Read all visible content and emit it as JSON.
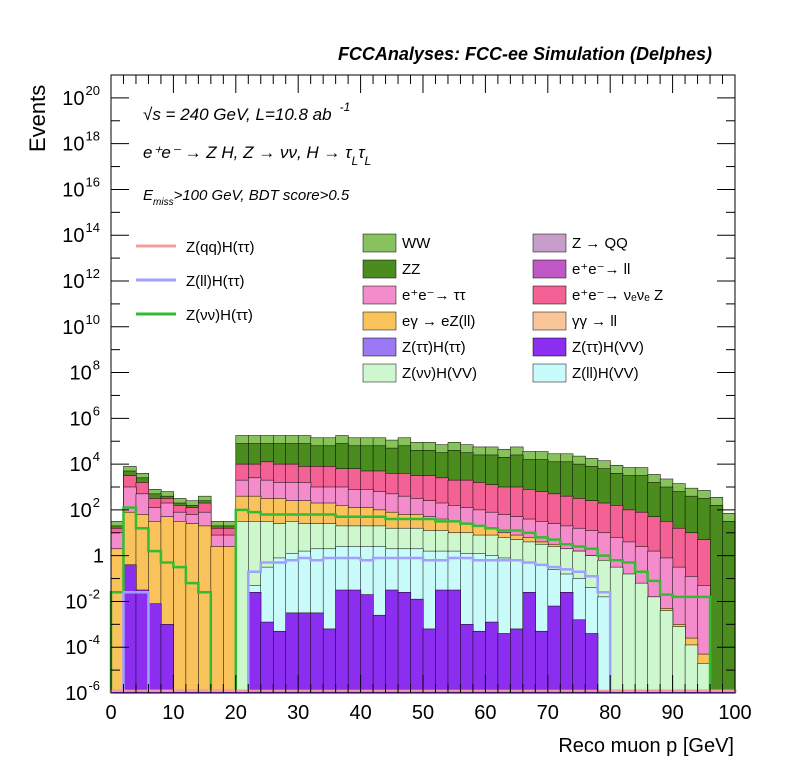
{
  "header": {
    "title": "FCCAnalyses: FCC-ee Simulation (Delphes)"
  },
  "annotations": {
    "energy_pre": "√s = 240 GeV, L=10.8 ab",
    "energy_sup": "-1",
    "process": "e⁺e⁻ → Z H, Z → νν, H → τ",
    "tau_sub": "L",
    "selection_pre": "E",
    "selection_sub": "miss",
    "selection_post": ">100 GeV, BDT score>0.5"
  },
  "colors": {
    "WW": "#88c25c",
    "ZZ": "#4a8c1e",
    "ee_tautau": "#f48ccb",
    "egamma_eZll": "#f9c25a",
    "Ztautau_Htautau": "#9b79f5",
    "Znunu_HVV": "#cdf7cd",
    "Z_QQ": "#c79ec9",
    "ee_ll": "#c058c6",
    "ee_nunuZ": "#f46194",
    "gammagamma_ll": "#f9c69a",
    "Ztautau_HVV": "#8b2ef0",
    "Zll_HVV": "#c9fbfb",
    "sig_qq": "#f49d9d",
    "sig_ll": "#a0a0ff",
    "sig_nunu": "#33bb33"
  },
  "chart_data": {
    "type": "histogram (stacked, log scale)",
    "xlabel": "Reco muon p [GeV]",
    "ylabel": "Events",
    "xlim": [
      0,
      100
    ],
    "ylim": [
      1e-06,
      1e+21
    ],
    "log_y": true,
    "x_ticks": [
      "0",
      "10",
      "20",
      "30",
      "40",
      "50",
      "60",
      "70",
      "80",
      "90",
      "100"
    ],
    "y_ticks": [
      {
        "base": "10",
        "exp": "-6"
      },
      {
        "base": "10",
        "exp": "-4"
      },
      {
        "base": "10",
        "exp": "-2"
      },
      {
        "base": "1",
        "exp": ""
      },
      {
        "base": "10",
        "exp": "2"
      },
      {
        "base": "10",
        "exp": "4"
      },
      {
        "base": "10",
        "exp": "6"
      },
      {
        "base": "10",
        "exp": "8"
      },
      {
        "base": "10",
        "exp": "10"
      },
      {
        "base": "10",
        "exp": "12"
      },
      {
        "base": "10",
        "exp": "14"
      },
      {
        "base": "10",
        "exp": "16"
      },
      {
        "base": "10",
        "exp": "18"
      },
      {
        "base": "10",
        "exp": "20"
      }
    ],
    "bins_note": "bins of width 2 GeV from 0 to 100",
    "stack_totals_log10": {
      "ZZ_top": [
        1.3,
        3.7,
        3.4,
        2.7,
        2.6,
        2.3,
        2.2,
        2.4,
        1.3,
        1.3,
        4.9,
        4.9,
        4.9,
        4.9,
        4.9,
        4.9,
        4.8,
        4.8,
        4.9,
        4.8,
        4.8,
        4.8,
        4.7,
        4.8,
        4.6,
        4.6,
        4.5,
        4.6,
        4.5,
        4.4,
        4.4,
        4.3,
        4.4,
        4.2,
        4.2,
        4.1,
        4.1,
        4.0,
        3.9,
        3.8,
        3.6,
        3.5,
        3.5,
        3.2,
        3.0,
        2.8,
        2.6,
        2.5,
        2.2,
        1.5
      ],
      "ee_nunuZ_top": [
        1.2,
        3.5,
        3.2,
        2.5,
        2.5,
        2.2,
        2.1,
        2.3,
        1.2,
        1.2,
        4.0,
        4.0,
        4.1,
        4.0,
        4.0,
        3.9,
        3.9,
        3.9,
        3.8,
        3.8,
        3.7,
        3.7,
        3.6,
        3.6,
        3.5,
        3.5,
        3.4,
        3.3,
        3.3,
        3.2,
        3.1,
        3.0,
        3.0,
        2.9,
        2.8,
        2.7,
        2.6,
        2.5,
        2.4,
        2.3,
        2.2,
        2.0,
        1.9,
        1.7,
        1.5,
        1.2,
        1.0,
        0.7,
        -5.9,
        -5.9
      ],
      "ee_tautau_top": [
        1.0,
        3.0,
        2.7,
        2.1,
        2.3,
        1.9,
        1.8,
        1.9,
        0.9,
        0.9,
        3.3,
        3.4,
        3.3,
        3.2,
        3.2,
        3.2,
        3.0,
        3.0,
        3.0,
        2.9,
        2.9,
        2.8,
        2.7,
        2.6,
        2.5,
        2.4,
        2.3,
        2.2,
        2.1,
        2.0,
        1.9,
        1.8,
        1.7,
        1.6,
        1.5,
        1.4,
        1.3,
        1.2,
        1.1,
        1.0,
        0.8,
        0.6,
        0.4,
        0.2,
        -0.1,
        -0.5,
        -0.9,
        -1.3,
        -5.9,
        -5.9
      ],
      "egamma_top": [
        0.3,
        1.9,
        1.8,
        1.5,
        1.7,
        1.5,
        1.4,
        1.3,
        0.4,
        0.4,
        2.6,
        2.6,
        2.5,
        2.5,
        2.4,
        2.4,
        2.3,
        2.3,
        2.2,
        2.1,
        2.1,
        2.0,
        1.9,
        1.8,
        1.8,
        1.7,
        1.6,
        1.5,
        1.4,
        1.3,
        1.2,
        1.0,
        0.9,
        0.8,
        0.6,
        0.5,
        0.3,
        0.2,
        0.0,
        -0.3,
        -0.6,
        -0.9,
        -1.3,
        -1.8,
        -2.3,
        -3.0,
        -3.6,
        -4.3,
        -5.9,
        -5.9
      ],
      "Znunu_HVV_top": [
        -5.9,
        -5.9,
        -5.9,
        -5.9,
        -5.9,
        -5.9,
        -5.9,
        -5.9,
        -5.9,
        -5.9,
        1.5,
        1.5,
        1.5,
        1.4,
        1.5,
        1.4,
        1.4,
        1.4,
        1.3,
        1.3,
        1.3,
        1.3,
        1.2,
        1.2,
        1.2,
        1.1,
        1.1,
        1.0,
        1.0,
        0.9,
        0.9,
        0.8,
        0.7,
        0.6,
        0.5,
        0.4,
        0.3,
        0.2,
        0.0,
        -0.2,
        -0.5,
        -0.8,
        -1.2,
        -1.8,
        -2.4,
        -3.1,
        -3.9,
        -4.7,
        -5.9,
        -5.9
      ],
      "Zll_HVV_top": [
        -5.9,
        -5.9,
        -5.9,
        -5.9,
        -5.9,
        -5.9,
        -5.9,
        -5.9,
        -5.9,
        -5.9,
        -5.9,
        -1.3,
        -0.5,
        -0.1,
        0.1,
        0.2,
        0.3,
        0.3,
        0.4,
        0.4,
        0.4,
        0.4,
        0.3,
        0.3,
        0.3,
        0.2,
        0.2,
        0.2,
        0.1,
        0.1,
        0.0,
        -0.1,
        -0.2,
        -0.3,
        -0.4,
        -0.6,
        -0.8,
        -1.0,
        -1.4,
        -1.8,
        -5.9,
        -5.9,
        -5.9,
        -5.9,
        -5.9,
        -5.9,
        -5.9,
        -5.9,
        -5.9,
        -5.9
      ],
      "Ztautau_HVV_top": [
        -5.9,
        -0.4,
        -1.5,
        -2.1,
        -3.0,
        -5.9,
        -5.9,
        -5.9,
        -5.9,
        -5.9,
        -5.9,
        -1.6,
        -2.9,
        -3.3,
        -2.5,
        -2.5,
        -2.5,
        -3.2,
        -1.5,
        -1.5,
        -1.7,
        -2.6,
        -1.5,
        -1.6,
        -1.9,
        -3.2,
        -1.5,
        -1.5,
        -3.0,
        -3.3,
        -2.9,
        -3.4,
        -3.2,
        -1.6,
        -3.3,
        -2.2,
        -1.6,
        -2.8,
        -3.4,
        -5.9,
        -5.9,
        -5.9,
        -5.9,
        -5.9,
        -5.9,
        -5.9,
        -5.9,
        -5.9,
        -5.9,
        -5.9
      ]
    },
    "signal_series_log10": {
      "Z(νν)H(ττ)": [
        -1.6,
        2.1,
        1.2,
        0.2,
        -0.3,
        -0.5,
        -1.2,
        -1.6,
        -5.9,
        -5.9,
        2.0,
        1.9,
        1.8,
        1.8,
        1.8,
        1.8,
        1.8,
        1.8,
        1.7,
        1.7,
        1.7,
        1.7,
        1.6,
        1.6,
        1.6,
        1.6,
        1.5,
        1.5,
        1.4,
        1.3,
        1.2,
        1.1,
        1.1,
        1.0,
        0.8,
        0.7,
        0.5,
        0.4,
        0.3,
        0.0,
        -0.2,
        -0.3,
        -0.7,
        -1.1,
        -1.7,
        -1.8,
        -1.8,
        -1.8,
        -5.9,
        -5.9
      ],
      "Z(ll)H(ττ)": [
        -5.9,
        -1.6,
        -1.6,
        -5.9,
        -5.9,
        -5.9,
        -5.9,
        -5.9,
        -5.9,
        -5.9,
        -5.9,
        -0.7,
        -0.3,
        -0.3,
        -0.2,
        -0.1,
        -0.2,
        -0.1,
        -0.1,
        -0.1,
        -0.2,
        -0.1,
        -0.1,
        -0.1,
        -0.1,
        -0.2,
        -0.2,
        -0.1,
        -0.1,
        -0.2,
        -0.2,
        -0.2,
        -0.2,
        -0.3,
        -0.4,
        -0.5,
        -0.6,
        -0.7,
        -0.9,
        -1.6,
        -5.9,
        -5.9,
        -5.9,
        -5.9,
        -5.9,
        -5.9,
        -5.9,
        -5.9,
        -5.9,
        -5.9
      ],
      "Z(qq)H(ττ)": [
        -5.9,
        -5.9,
        -5.9,
        -5.9,
        -5.9,
        -5.9,
        -5.9,
        -5.9,
        -5.9,
        -5.9,
        -5.9,
        -5.9,
        -5.9,
        -5.9,
        -5.9,
        -5.9,
        -5.9,
        -5.9,
        -5.9,
        -5.9,
        -5.9,
        -5.9,
        -5.9,
        -5.9,
        -5.9,
        -5.9,
        -5.9,
        -5.9,
        -5.9,
        -5.9,
        -5.9,
        -5.9,
        -5.9,
        -5.9,
        -5.9,
        -5.9,
        -5.9,
        -5.9,
        -5.9,
        -5.9,
        -5.9,
        -5.9,
        -5.9,
        -5.9,
        -5.9,
        -5.9,
        -5.9,
        -5.9,
        -5.9,
        -5.9
      ]
    }
  },
  "legend_signal": [
    {
      "key": "sig_qq",
      "label": "Z(qq)H(ττ)"
    },
    {
      "key": "sig_ll",
      "label": "Z(ll)H(ττ)"
    },
    {
      "key": "sig_nunu",
      "label": "Z(νν)H(ττ)"
    }
  ],
  "legend_bkg_col1": [
    {
      "key": "WW",
      "label": "WW"
    },
    {
      "key": "ZZ",
      "label": "ZZ"
    },
    {
      "key": "ee_tautau",
      "label": "e⁺e⁻→ ττ"
    },
    {
      "key": "egamma_eZll",
      "label": "eγ → eZ(ll)"
    },
    {
      "key": "Ztautau_Htautau",
      "label": "Z(ττ)H(ττ)"
    },
    {
      "key": "Znunu_HVV",
      "label": "Z(νν)H(VV)"
    }
  ],
  "legend_bkg_col2": [
    {
      "key": "Z_QQ",
      "label": "Z → QQ"
    },
    {
      "key": "ee_ll",
      "label": "e⁺e⁻→ ll"
    },
    {
      "key": "ee_nunuZ",
      "label": "e⁺e⁻→ νₑνₑ Z"
    },
    {
      "key": "gammagamma_ll",
      "label": "γγ → ll"
    },
    {
      "key": "Ztautau_HVV",
      "label": "Z(ττ)H(VV)"
    },
    {
      "key": "Zll_HVV",
      "label": "Z(ll)H(VV)"
    }
  ]
}
